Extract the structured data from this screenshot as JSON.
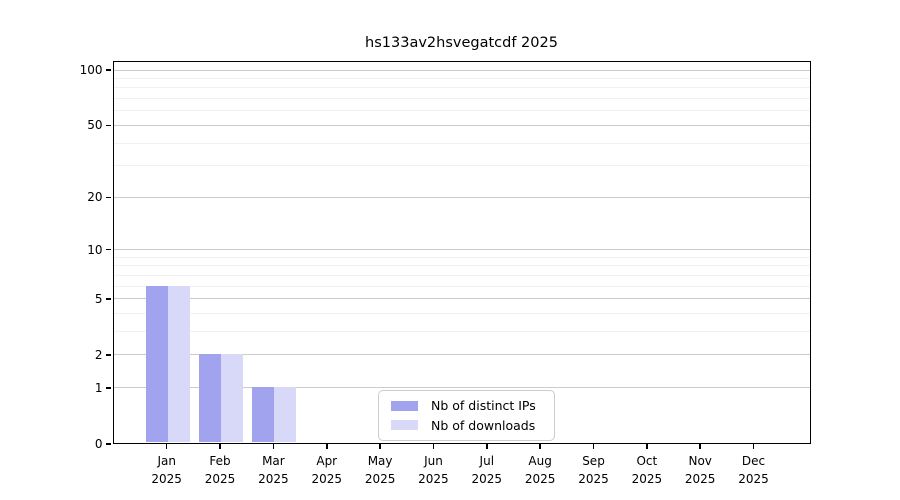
{
  "chart_data": {
    "type": "bar",
    "title": "hs133av2hsvegatcdf 2025",
    "categories": [
      "Jan",
      "Feb",
      "Mar",
      "Apr",
      "May",
      "Jun",
      "Jul",
      "Aug",
      "Sep",
      "Oct",
      "Nov",
      "Dec"
    ],
    "year_label": "2025",
    "series": [
      {
        "name": "Nb of distinct IPs",
        "color": "#a2a3ef",
        "values": [
          6,
          2,
          1,
          0,
          0,
          0,
          0,
          0,
          0,
          0,
          0,
          0
        ]
      },
      {
        "name": "Nb of downloads",
        "color": "#d8d9f8",
        "values": [
          6,
          2,
          1,
          0,
          0,
          0,
          0,
          0,
          0,
          0,
          0,
          0
        ]
      }
    ],
    "xlabel": "",
    "ylabel": "",
    "y_axis": {
      "scale": "log10(1+x)",
      "ticks": [
        0,
        1,
        2,
        5,
        10,
        20,
        50,
        100
      ],
      "minor_gridlines": [
        3,
        4,
        6,
        7,
        8,
        9,
        30,
        40,
        60,
        70,
        80,
        90
      ],
      "range": [
        0,
        100
      ]
    },
    "grid": true,
    "legend_position": "bottom-center-inside"
  },
  "colors": {
    "major_grid": "#cbcbcb",
    "minor_grid": "#f0f0f0",
    "spine": "#000000",
    "background": "#ffffff",
    "text": "#000000",
    "legend_border": "#cccccc"
  }
}
